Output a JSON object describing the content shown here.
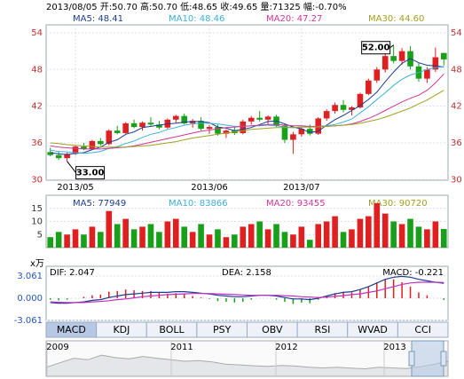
{
  "header": "2013/08/05 开:50.70 高:50.70 低:48.65 收:49.65 量:71325 幅:-0.70%",
  "chart_data": [
    {
      "type": "candlestick",
      "open": [
        34.5,
        34.0,
        33.5,
        34.2,
        35.4,
        35.0,
        36.3,
        35.8,
        38.0,
        37.6,
        39.2,
        38.6,
        39.3,
        39.0,
        38.5,
        39.8,
        40.4,
        39.2,
        39.6,
        38.3,
        38.6,
        37.5,
        38.0,
        37.6,
        39.5,
        40.1,
        39.8,
        40.3,
        38.8,
        36.5,
        37.4,
        38.3,
        37.5,
        40.0,
        41.2,
        42.2,
        41.4,
        41.8,
        44.0,
        46.2,
        48.0,
        50.2,
        49.4,
        51.0,
        48.5,
        46.5,
        48.0,
        50.7
      ],
      "high": [
        35.2,
        34.6,
        34.4,
        35.6,
        36.0,
        36.5,
        36.8,
        38.2,
        38.8,
        39.4,
        39.8,
        39.5,
        40.2,
        39.6,
        40.0,
        40.6,
        40.8,
        39.9,
        40.2,
        38.9,
        39.0,
        38.2,
        38.6,
        39.8,
        40.4,
        41.2,
        40.5,
        40.6,
        39.2,
        37.8,
        38.6,
        39.0,
        40.2,
        41.5,
        42.6,
        43.0,
        42.0,
        44.2,
        46.5,
        48.4,
        50.6,
        52,
        51.5,
        51.8,
        49.2,
        48.4,
        51.6,
        50.7
      ],
      "low": [
        33.8,
        33.2,
        33,
        34.0,
        34.8,
        34.9,
        35.5,
        35.6,
        37.4,
        37.5,
        38.4,
        38.0,
        38.8,
        38.2,
        38.3,
        39.2,
        39.0,
        38.5,
        38.0,
        37.5,
        37.2,
        36.8,
        37.3,
        37.4,
        39.0,
        39.5,
        38.9,
        38.6,
        36.0,
        34.2,
        37.0,
        37.2,
        37.3,
        39.6,
        40.8,
        41.0,
        40.5,
        41.6,
        43.8,
        45.8,
        47.5,
        49.0,
        48.8,
        48.0,
        46.0,
        45.8,
        47.6,
        48.65
      ],
      "close": [
        34.0,
        33.5,
        34.2,
        35.4,
        35.0,
        36.3,
        35.8,
        38.0,
        37.6,
        39.2,
        38.6,
        39.3,
        39.0,
        38.5,
        39.8,
        40.4,
        39.2,
        39.6,
        38.3,
        38.6,
        37.5,
        38.0,
        37.6,
        39.5,
        40.1,
        39.8,
        40.3,
        38.8,
        36.5,
        37.4,
        38.3,
        37.5,
        40.0,
        41.2,
        42.2,
        41.4,
        41.8,
        44.0,
        46.2,
        48.0,
        50.2,
        49.4,
        51.0,
        48.5,
        46.5,
        48.0,
        50.0,
        49.65
      ],
      "series": [
        {
          "name": "MA5: 48.41",
          "color": "#1a3d8f",
          "values": [
            34.4,
            34.2,
            34.1,
            34.3,
            34.4,
            34.9,
            35.3,
            36.1,
            36.5,
            37.4,
            37.8,
            38.5,
            38.7,
            38.9,
            39.1,
            39.2,
            39.4,
            39.5,
            39.5,
            39.3,
            38.6,
            38.4,
            38.0,
            38.2,
            38.5,
            39.0,
            39.5,
            39.6,
            39.1,
            38.6,
            38.3,
            37.7,
            37.9,
            38.9,
            39.8,
            40.5,
            41.3,
            42.1,
            43.1,
            44.3,
            46.0,
            47.6,
            49.0,
            49.8,
            49.1,
            48.7,
            48.6,
            48.41
          ]
        },
        {
          "name": "MA10: 48.46",
          "color": "#3cb0d8",
          "values": [
            34.8,
            34.6,
            34.5,
            34.4,
            34.3,
            34.4,
            34.6,
            35.1,
            35.4,
            35.9,
            36.3,
            36.9,
            37.4,
            37.7,
            38.2,
            38.5,
            38.9,
            39.1,
            39.2,
            39.2,
            39.1,
            38.9,
            38.7,
            38.7,
            38.8,
            38.8,
            38.9,
            38.8,
            38.6,
            38.5,
            38.6,
            38.6,
            38.7,
            38.8,
            39.0,
            39.4,
            39.9,
            40.9,
            41.9,
            43.1,
            44.2,
            45.4,
            46.4,
            47.1,
            47.5,
            48.0,
            48.3,
            48.46
          ]
        },
        {
          "name": "MA20: 47.27",
          "color": "#d0369a",
          "values": [
            35.5,
            35.3,
            35.2,
            35.1,
            35.0,
            35.0,
            35.0,
            35.1,
            35.2,
            35.3,
            35.5,
            35.8,
            36.1,
            36.4,
            36.7,
            37.0,
            37.3,
            37.6,
            37.9,
            38.1,
            38.3,
            38.5,
            38.6,
            38.7,
            38.8,
            38.9,
            39.0,
            39.0,
            38.9,
            38.8,
            38.8,
            38.7,
            38.7,
            38.7,
            38.8,
            38.9,
            39.1,
            39.5,
            40.0,
            40.6,
            41.3,
            42.0,
            42.7,
            43.3,
            43.8,
            44.6,
            45.8,
            47.27
          ]
        },
        {
          "name": "MA30: 44.60",
          "color": "#a0a020",
          "values": [
            36.0,
            35.9,
            35.7,
            35.6,
            35.5,
            35.4,
            35.3,
            35.3,
            35.3,
            35.3,
            35.4,
            35.5,
            35.6,
            35.8,
            36.0,
            36.2,
            36.5,
            36.8,
            37.0,
            37.2,
            37.4,
            37.6,
            37.8,
            38.0,
            38.2,
            38.3,
            38.4,
            38.5,
            38.5,
            38.5,
            38.6,
            38.6,
            38.6,
            38.7,
            38.8,
            38.9,
            39.0,
            39.2,
            39.5,
            39.8,
            40.2,
            40.7,
            41.2,
            41.7,
            42.4,
            43.0,
            43.8,
            44.6
          ]
        }
      ],
      "up_color": "#e02020",
      "down_color": "#18a018",
      "ylim": [
        29.9,
        55.3
      ],
      "yticks": [
        54,
        48,
        42,
        36,
        30
      ],
      "xticks": [
        {
          "value": 3,
          "label": "2013/05"
        },
        {
          "value": 19,
          "label": "2013/06"
        },
        {
          "value": 30,
          "label": "2013/07"
        }
      ],
      "annotations": [
        {
          "value": 52,
          "label": "52.00",
          "field": "high"
        },
        {
          "value": 33,
          "label": "33.00",
          "field": "low"
        }
      ]
    },
    {
      "type": "volume",
      "values": [
        4,
        6,
        5,
        7,
        5,
        8,
        6,
        14,
        9,
        11,
        7,
        8,
        9,
        6,
        10,
        11,
        8,
        6,
        9,
        5,
        7,
        4,
        5,
        8,
        9,
        10,
        7,
        9,
        6,
        5,
        8,
        3,
        9,
        10,
        12,
        6,
        7,
        11,
        12,
        17,
        13,
        10,
        9,
        11,
        8,
        7,
        10,
        7.1325
      ],
      "legend": [
        {
          "name": "MA5: 77949",
          "color": "#1a3d8f"
        },
        {
          "name": "MA10: 83866",
          "color": "#3cb0d8"
        },
        {
          "name": "MA20: 93455",
          "color": "#d0369a"
        },
        {
          "name": "MA30: 90720",
          "color": "#a0a020"
        }
      ],
      "unit": "x万",
      "ylim": [
        0,
        20
      ],
      "yticks": [
        15,
        10,
        5
      ]
    },
    {
      "type": "macd",
      "series": [
        {
          "name": "DIF: 2.047",
          "color": "#1a3d8f",
          "values": [
            -0.6,
            -0.7,
            -0.7,
            -0.6,
            -0.5,
            -0.3,
            -0.2,
            0.1,
            0.3,
            0.5,
            0.6,
            0.7,
            0.8,
            0.8,
            0.8,
            0.9,
            0.9,
            0.8,
            0.7,
            0.6,
            0.4,
            0.3,
            0.2,
            0.2,
            0.3,
            0.4,
            0.4,
            0.3,
            0.1,
            -0.1,
            -0.1,
            -0.2,
            0,
            0.3,
            0.6,
            0.8,
            0.9,
            1.2,
            1.6,
            2.1,
            2.6,
            2.9,
            3.0,
            2.9,
            2.6,
            2.4,
            2.2,
            2.047
          ]
        },
        {
          "name": "DEA: 2.158",
          "color": "#c030c0",
          "values": [
            -0.5,
            -0.55,
            -0.6,
            -0.6,
            -0.6,
            -0.5,
            -0.45,
            -0.35,
            -0.2,
            -0.1,
            0.05,
            0.2,
            0.3,
            0.4,
            0.5,
            0.55,
            0.6,
            0.65,
            0.65,
            0.65,
            0.6,
            0.55,
            0.5,
            0.45,
            0.4,
            0.4,
            0.4,
            0.4,
            0.35,
            0.3,
            0.2,
            0.15,
            0.1,
            0.15,
            0.25,
            0.35,
            0.5,
            0.6,
            0.8,
            1.0,
            1.3,
            1.6,
            1.9,
            2.1,
            2.2,
            2.2,
            2.2,
            2.158
          ]
        }
      ],
      "histogram": {
        "name": "MACD: -0.221",
        "values": [
          -0.2,
          -0.3,
          -0.2,
          0,
          0.2,
          0.4,
          0.5,
          0.9,
          1.0,
          1.2,
          1.1,
          1.0,
          1.0,
          0.8,
          0.6,
          0.7,
          0.6,
          0.3,
          0.1,
          -0.1,
          -0.4,
          -0.5,
          -0.6,
          -0.5,
          -0.2,
          0,
          0,
          -0.2,
          -0.5,
          -0.8,
          -0.6,
          -0.7,
          -0.2,
          0.3,
          0.7,
          0.9,
          0.8,
          1.2,
          1.6,
          2.2,
          2.6,
          2.6,
          2.2,
          1.6,
          0.8,
          0.4,
          0,
          -0.221
        ],
        "up_color": "#e02020",
        "down_color": "#18a018"
      },
      "ylim": [
        -3.061,
        4.4
      ],
      "yticks": [
        3.061,
        {
          "value": 0,
          "label": "0.000"
        },
        -3.061
      ]
    }
  ],
  "tabs": [
    "MACD",
    "KDJ",
    "BOLL",
    "PSY",
    "OBV",
    "RSI",
    "WVAD",
    "CCI"
  ],
  "navigator": {
    "years": [
      "2009",
      "2011",
      "2012",
      "2013"
    ],
    "values": [
      30,
      45,
      60,
      55,
      70,
      62,
      58,
      66,
      60,
      55,
      50,
      52,
      48,
      40,
      38,
      35,
      33,
      36,
      34,
      30,
      28,
      30,
      27,
      25,
      30,
      28,
      26,
      32,
      40,
      50
    ],
    "ylim": [
      0,
      100
    ]
  }
}
